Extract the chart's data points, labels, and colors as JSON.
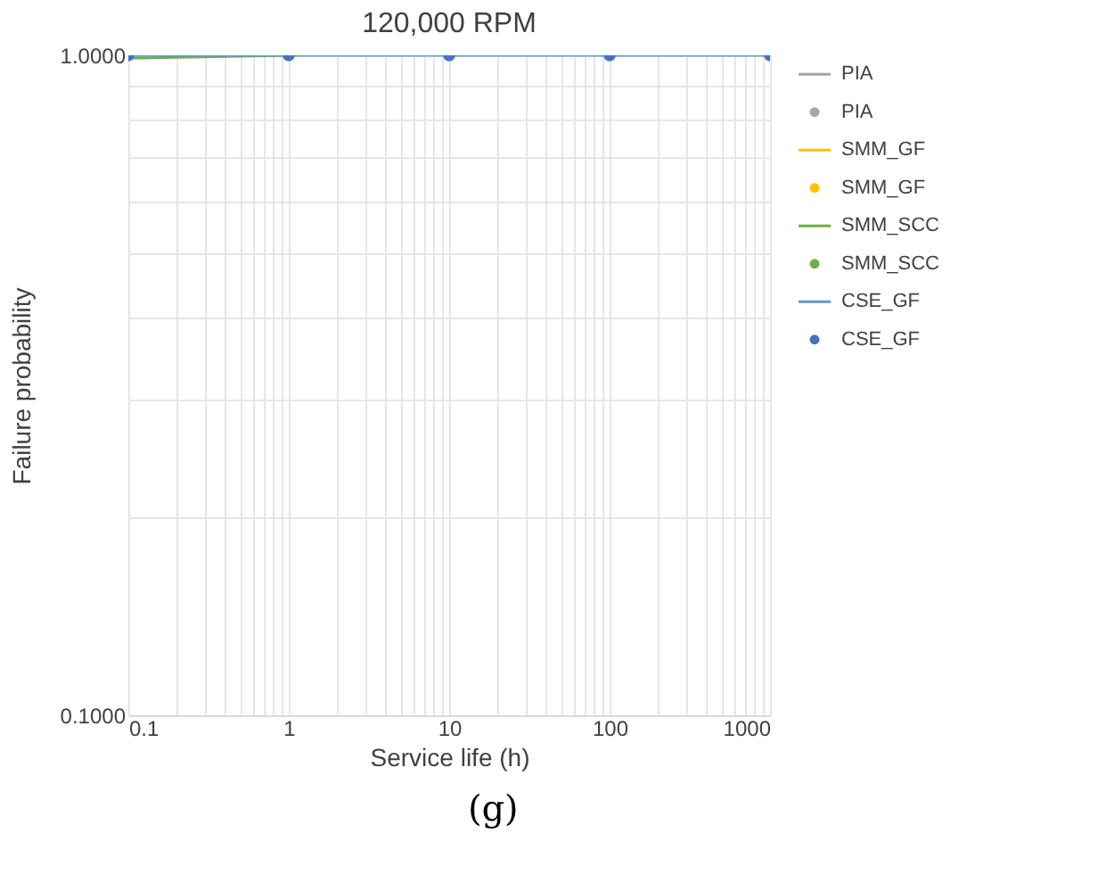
{
  "chart_data": {
    "type": "line",
    "title": "120,000 RPM",
    "xlabel": "Service life (h)",
    "ylabel": "Failure probability",
    "x": [
      0.1,
      1,
      10,
      100,
      1000
    ],
    "series": [
      {
        "name": "PIA",
        "color": "#a5a5a5",
        "values": [
          null,
          null,
          null,
          null,
          null
        ]
      },
      {
        "name": "PIA",
        "type": "scatter",
        "color": "#a5a5a5",
        "values": [
          null,
          null,
          null,
          null,
          null
        ]
      },
      {
        "name": "SMM_GF",
        "color": "#ffc000",
        "values": [
          null,
          null,
          null,
          null,
          null
        ]
      },
      {
        "name": "SMM_GF",
        "type": "scatter",
        "color": "#ffc000",
        "values": [
          null,
          null,
          null,
          null,
          null
        ]
      },
      {
        "name": "SMM_SCC",
        "color": "#70ad47",
        "values": [
          0.99,
          1,
          null,
          null,
          null
        ]
      },
      {
        "name": "SMM_SCC",
        "type": "scatter",
        "color": "#70ad47",
        "values": [
          null,
          null,
          null,
          null,
          null
        ]
      },
      {
        "name": "CSE_GF",
        "color": "#5b9bd5",
        "values": [
          1,
          1,
          1,
          1,
          1
        ]
      },
      {
        "name": "CSE_GF",
        "type": "scatter",
        "color": "#4472c4",
        "values": [
          1,
          1,
          1,
          1,
          1
        ]
      }
    ],
    "log": "xy",
    "xlim": [
      0.1,
      1000
    ],
    "ylim": [
      0.1,
      1
    ],
    "xticks": [
      0.1,
      {
        "value": 0.2,
        "label": null
      },
      {
        "value": 0.3,
        "label": null
      },
      {
        "value": 0.4,
        "label": null
      },
      {
        "value": 0.5,
        "label": null
      },
      {
        "value": 0.6,
        "label": null
      },
      {
        "value": 0.7,
        "label": null
      },
      {
        "value": 0.8,
        "label": null
      },
      {
        "value": 0.9,
        "label": null
      },
      1,
      {
        "value": 2,
        "label": null
      },
      {
        "value": 3,
        "label": null
      },
      {
        "value": 4,
        "label": null
      },
      {
        "value": 5,
        "label": null
      },
      {
        "value": 6,
        "label": null
      },
      {
        "value": 7,
        "label": null
      },
      {
        "value": 8,
        "label": null
      },
      {
        "value": 9,
        "label": null
      },
      10,
      {
        "value": 20,
        "label": null
      },
      {
        "value": 30,
        "label": null
      },
      {
        "value": 40,
        "label": null
      },
      {
        "value": 50,
        "label": null
      },
      {
        "value": 60,
        "label": null
      },
      {
        "value": 70,
        "label": null
      },
      {
        "value": 80,
        "label": null
      },
      {
        "value": 90,
        "label": null
      },
      100,
      {
        "value": 200,
        "label": null
      },
      {
        "value": 300,
        "label": null
      },
      {
        "value": 400,
        "label": null
      },
      {
        "value": 500,
        "label": null
      },
      {
        "value": 600,
        "label": null
      },
      {
        "value": 700,
        "label": null
      },
      {
        "value": 800,
        "label": null
      },
      {
        "value": 900,
        "label": null
      },
      1000
    ],
    "yticks": [
      {
        "value": 0.1,
        "label": "0.1000"
      },
      {
        "value": 0.2,
        "label": null
      },
      {
        "value": 0.3,
        "label": null
      },
      {
        "value": 0.4,
        "label": null
      },
      {
        "value": 0.5,
        "label": null
      },
      {
        "value": 0.6,
        "label": null
      },
      {
        "value": 0.7,
        "label": null
      },
      {
        "value": 0.8,
        "label": null
      },
      {
        "value": 0.9,
        "label": null
      },
      {
        "value": 1,
        "label": "1.0000"
      }
    ],
    "grid": true,
    "legend": "right",
    "line_style": "solid",
    "annotations": [
      "(g)"
    ]
  }
}
